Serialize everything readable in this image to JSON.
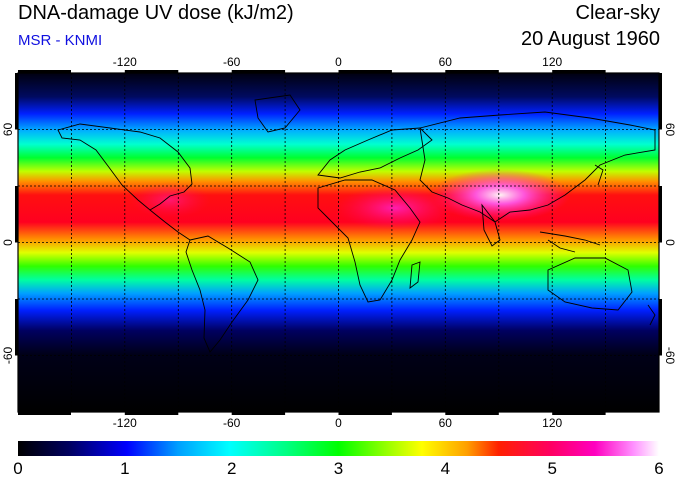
{
  "header": {
    "title": "DNA-damage UV dose (kJ/m2)",
    "subtitle": "MSR - KNMI",
    "condition": "Clear-sky",
    "date": "20 August 1960"
  },
  "map": {
    "lon_ticks": [
      "-120",
      "-60",
      "0",
      "60",
      "120"
    ],
    "lat_ticks_left": [
      "60",
      "0",
      "-60"
    ],
    "lat_ticks_right": [
      "60",
      "0",
      "-60"
    ]
  },
  "colorbar": {
    "labels": [
      "0",
      "1",
      "2",
      "3",
      "4",
      "5",
      "6"
    ],
    "colors": [
      "#000000",
      "#000060",
      "#0000ff",
      "#00a0ff",
      "#00ffff",
      "#00ff80",
      "#00ff00",
      "#80ff00",
      "#ffff00",
      "#ffa000",
      "#ff0000",
      "#ff0060",
      "#ff00c0",
      "#ff80ff",
      "#ffffff"
    ]
  }
}
